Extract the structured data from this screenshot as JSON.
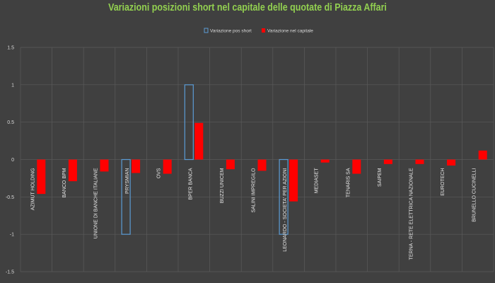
{
  "colors": {
    "background": "#404040",
    "title": "#92d050",
    "short_outline": "#5b9bd5",
    "capital_fill": "#ff0000",
    "grid": "#5a5a5a"
  },
  "chart_data": {
    "type": "bar",
    "title": "Variazioni posizioni short nel capitale delle quotate di Piazza Affari",
    "xlabel": "",
    "ylabel": "",
    "ylim": [
      -1.5,
      1.5
    ],
    "yticks": [
      "1.5",
      "1",
      "0.5",
      "0",
      "-0.5",
      "-1",
      "-1.5"
    ],
    "grid": true,
    "legend_position": "top-center",
    "categories": [
      "AZIMUT HOLDING",
      "BANCO BPM",
      "UNIONE DI BANCHE ITALIANE",
      "PRYSMIAN",
      "OVS",
      "BPER BANCA",
      "BUZZI UNICEM",
      "SALINI IMPREGILO",
      "LEONARDO - SOCIETA' PER AZIONI",
      "MEDIASET",
      "TENARIS SA",
      "SAIPEM",
      "TERNA - RETE ELETTRICA NAZIONALE",
      "EUROTECH",
      "BRUNELLO CUCINELLI"
    ],
    "series": [
      {
        "name": "Variazione pos short",
        "style": "outline",
        "values": [
          0,
          0,
          0,
          -1.0,
          0,
          1.0,
          0,
          0,
          -1.0,
          0,
          0,
          0,
          0,
          0,
          0
        ]
      },
      {
        "name": "Variazione nel capitale",
        "style": "filled",
        "values": [
          -0.46,
          -0.29,
          -0.16,
          -0.18,
          -0.19,
          0.49,
          -0.13,
          -0.15,
          -0.56,
          -0.04,
          -0.19,
          -0.06,
          -0.06,
          -0.08,
          0.12
        ]
      }
    ]
  }
}
